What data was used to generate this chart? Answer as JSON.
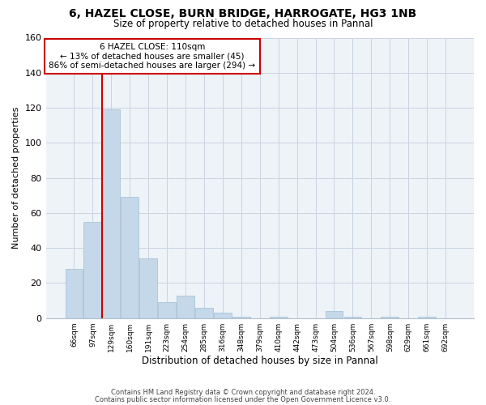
{
  "title": "6, HAZEL CLOSE, BURN BRIDGE, HARROGATE, HG3 1NB",
  "subtitle": "Size of property relative to detached houses in Pannal",
  "xlabel": "Distribution of detached houses by size in Pannal",
  "ylabel": "Number of detached properties",
  "bar_labels": [
    "66sqm",
    "97sqm",
    "129sqm",
    "160sqm",
    "191sqm",
    "223sqm",
    "254sqm",
    "285sqm",
    "316sqm",
    "348sqm",
    "379sqm",
    "410sqm",
    "442sqm",
    "473sqm",
    "504sqm",
    "536sqm",
    "567sqm",
    "598sqm",
    "629sqm",
    "661sqm",
    "692sqm"
  ],
  "bar_values": [
    28,
    55,
    119,
    69,
    34,
    9,
    13,
    6,
    3,
    1,
    0,
    1,
    0,
    0,
    4,
    1,
    0,
    1,
    0,
    1,
    0
  ],
  "bar_color": "#c5d8ea",
  "bar_edge_color": "#a8c4d8",
  "vline_x": 1.5,
  "vline_color": "#cc0000",
  "ylim": [
    0,
    160
  ],
  "yticks": [
    0,
    20,
    40,
    60,
    80,
    100,
    120,
    140,
    160
  ],
  "annotation_title": "6 HAZEL CLOSE: 110sqm",
  "annotation_line1": "← 13% of detached houses are smaller (45)",
  "annotation_line2": "86% of semi-detached houses are larger (294) →",
  "annotation_box_color": "#ffffff",
  "annotation_box_edge": "#cc0000",
  "footer1": "Contains HM Land Registry data © Crown copyright and database right 2024.",
  "footer2": "Contains public sector information licensed under the Open Government Licence v3.0."
}
